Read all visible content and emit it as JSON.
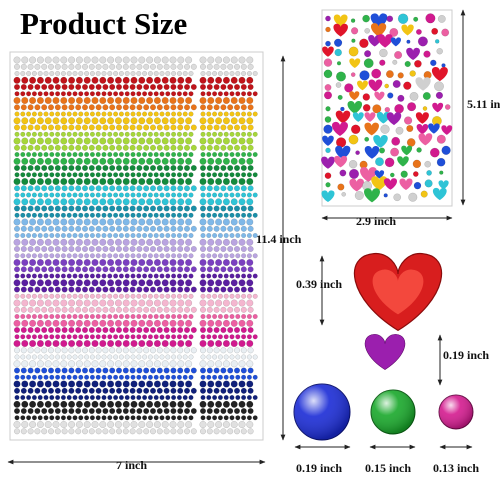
{
  "header": {
    "title": "Product Size"
  },
  "dimensions": {
    "sheet_width": "7 inch",
    "sheet_height": "11.4 inch",
    "small_sheet_height": "5.11 inch",
    "small_sheet_width": "2.9 inch",
    "large_heart": "0.39 inch",
    "small_heart": "0.19 inch",
    "large_round": "0.19 inch",
    "medium_round": "0.15 inch",
    "small_round": "0.13 inch"
  }
}
